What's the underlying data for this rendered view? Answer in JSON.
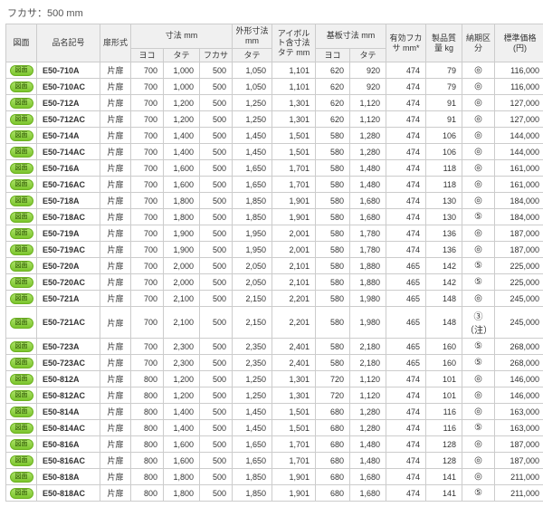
{
  "title": "フカサ：500 mm",
  "headers": {
    "zumen": "図面",
    "part": "品名記号",
    "door": "扉形式",
    "dims": "寸法 mm",
    "dims_sub": {
      "yoko": "ヨコ",
      "tate": "タテ",
      "fukasa": "フカサ"
    },
    "gaikei": "外形寸法 mm",
    "gaikei_sub": "タテ",
    "eyebolt": "アイボルト含寸法 タテ mm",
    "base": "基板寸法 mm",
    "base_sub": {
      "yoko": "ヨコ",
      "tate": "タテ"
    },
    "effective": "有効フカサ mm*",
    "mass": "製品質量 kg",
    "delivery": "納期区分",
    "price": "標準価格(円)"
  },
  "badge_label": "図面",
  "door_label": "片扉",
  "rows": [
    {
      "p": "E50-710A",
      "yoko": 700,
      "tate": 1000,
      "fuk": 500,
      "g": 1050,
      "eb": 1101,
      "by": 620,
      "bt": 920,
      "eff": 474,
      "kg": 79,
      "dlv": "◎",
      "pr": "116,000"
    },
    {
      "p": "E50-710AC",
      "yoko": 700,
      "tate": 1000,
      "fuk": 500,
      "g": 1050,
      "eb": 1101,
      "by": 620,
      "bt": 920,
      "eff": 474,
      "kg": 79,
      "dlv": "◎",
      "pr": "116,000"
    },
    {
      "p": "E50-712A",
      "yoko": 700,
      "tate": 1200,
      "fuk": 500,
      "g": 1250,
      "eb": 1301,
      "by": 620,
      "bt": 1120,
      "eff": 474,
      "kg": 91,
      "dlv": "◎",
      "pr": "127,000"
    },
    {
      "p": "E50-712AC",
      "yoko": 700,
      "tate": 1200,
      "fuk": 500,
      "g": 1250,
      "eb": 1301,
      "by": 620,
      "bt": 1120,
      "eff": 474,
      "kg": 91,
      "dlv": "◎",
      "pr": "127,000"
    },
    {
      "p": "E50-714A",
      "yoko": 700,
      "tate": 1400,
      "fuk": 500,
      "g": 1450,
      "eb": 1501,
      "by": 580,
      "bt": 1280,
      "eff": 474,
      "kg": 106,
      "dlv": "◎",
      "pr": "144,000"
    },
    {
      "p": "E50-714AC",
      "yoko": 700,
      "tate": 1400,
      "fuk": 500,
      "g": 1450,
      "eb": 1501,
      "by": 580,
      "bt": 1280,
      "eff": 474,
      "kg": 106,
      "dlv": "◎",
      "pr": "144,000"
    },
    {
      "p": "E50-716A",
      "yoko": 700,
      "tate": 1600,
      "fuk": 500,
      "g": 1650,
      "eb": 1701,
      "by": 580,
      "bt": 1480,
      "eff": 474,
      "kg": 118,
      "dlv": "◎",
      "pr": "161,000"
    },
    {
      "p": "E50-716AC",
      "yoko": 700,
      "tate": 1600,
      "fuk": 500,
      "g": 1650,
      "eb": 1701,
      "by": 580,
      "bt": 1480,
      "eff": 474,
      "kg": 118,
      "dlv": "◎",
      "pr": "161,000"
    },
    {
      "p": "E50-718A",
      "yoko": 700,
      "tate": 1800,
      "fuk": 500,
      "g": 1850,
      "eb": 1901,
      "by": 580,
      "bt": 1680,
      "eff": 474,
      "kg": 130,
      "dlv": "◎",
      "pr": "184,000"
    },
    {
      "p": "E50-718AC",
      "yoko": 700,
      "tate": 1800,
      "fuk": 500,
      "g": 1850,
      "eb": 1901,
      "by": 580,
      "bt": 1680,
      "eff": 474,
      "kg": 130,
      "dlv": "⑤",
      "pr": "184,000"
    },
    {
      "p": "E50-719A",
      "yoko": 700,
      "tate": 1900,
      "fuk": 500,
      "g": 1950,
      "eb": 2001,
      "by": 580,
      "bt": 1780,
      "eff": 474,
      "kg": 136,
      "dlv": "◎",
      "pr": "187,000"
    },
    {
      "p": "E50-719AC",
      "yoko": 700,
      "tate": 1900,
      "fuk": 500,
      "g": 1950,
      "eb": 2001,
      "by": 580,
      "bt": 1780,
      "eff": 474,
      "kg": 136,
      "dlv": "◎",
      "pr": "187,000"
    },
    {
      "p": "E50-720A",
      "yoko": 700,
      "tate": 2000,
      "fuk": 500,
      "g": 2050,
      "eb": 2101,
      "by": 580,
      "bt": 1880,
      "eff": 465,
      "kg": 142,
      "dlv": "⑤",
      "pr": "225,000"
    },
    {
      "p": "E50-720AC",
      "yoko": 700,
      "tate": 2000,
      "fuk": 500,
      "g": 2050,
      "eb": 2101,
      "by": 580,
      "bt": 1880,
      "eff": 465,
      "kg": 142,
      "dlv": "⑤",
      "pr": "225,000"
    },
    {
      "p": "E50-721A",
      "yoko": 700,
      "tate": 2100,
      "fuk": 500,
      "g": 2150,
      "eb": 2201,
      "by": 580,
      "bt": 1980,
      "eff": 465,
      "kg": 148,
      "dlv": "◎",
      "pr": "245,000"
    },
    {
      "p": "E50-721AC",
      "yoko": 700,
      "tate": 2100,
      "fuk": 500,
      "g": 2150,
      "eb": 2201,
      "by": 580,
      "bt": 1980,
      "eff": 465,
      "kg": 148,
      "dlv": "③（注）",
      "pr": "245,000"
    },
    {
      "p": "E50-723A",
      "yoko": 700,
      "tate": 2300,
      "fuk": 500,
      "g": 2350,
      "eb": 2401,
      "by": 580,
      "bt": 2180,
      "eff": 465,
      "kg": 160,
      "dlv": "⑤",
      "pr": "268,000"
    },
    {
      "p": "E50-723AC",
      "yoko": 700,
      "tate": 2300,
      "fuk": 500,
      "g": 2350,
      "eb": 2401,
      "by": 580,
      "bt": 2180,
      "eff": 465,
      "kg": 160,
      "dlv": "⑤",
      "pr": "268,000"
    },
    {
      "p": "E50-812A",
      "yoko": 800,
      "tate": 1200,
      "fuk": 500,
      "g": 1250,
      "eb": 1301,
      "by": 720,
      "bt": 1120,
      "eff": 474,
      "kg": 101,
      "dlv": "◎",
      "pr": "146,000"
    },
    {
      "p": "E50-812AC",
      "yoko": 800,
      "tate": 1200,
      "fuk": 500,
      "g": 1250,
      "eb": 1301,
      "by": 720,
      "bt": 1120,
      "eff": 474,
      "kg": 101,
      "dlv": "◎",
      "pr": "146,000"
    },
    {
      "p": "E50-814A",
      "yoko": 800,
      "tate": 1400,
      "fuk": 500,
      "g": 1450,
      "eb": 1501,
      "by": 680,
      "bt": 1280,
      "eff": 474,
      "kg": 116,
      "dlv": "◎",
      "pr": "163,000"
    },
    {
      "p": "E50-814AC",
      "yoko": 800,
      "tate": 1400,
      "fuk": 500,
      "g": 1450,
      "eb": 1501,
      "by": 680,
      "bt": 1280,
      "eff": 474,
      "kg": 116,
      "dlv": "⑤",
      "pr": "163,000"
    },
    {
      "p": "E50-816A",
      "yoko": 800,
      "tate": 1600,
      "fuk": 500,
      "g": 1650,
      "eb": 1701,
      "by": 680,
      "bt": 1480,
      "eff": 474,
      "kg": 128,
      "dlv": "◎",
      "pr": "187,000"
    },
    {
      "p": "E50-816AC",
      "yoko": 800,
      "tate": 1600,
      "fuk": 500,
      "g": 1650,
      "eb": 1701,
      "by": 680,
      "bt": 1480,
      "eff": 474,
      "kg": 128,
      "dlv": "◎",
      "pr": "187,000"
    },
    {
      "p": "E50-818A",
      "yoko": 800,
      "tate": 1800,
      "fuk": 500,
      "g": 1850,
      "eb": 1901,
      "by": 680,
      "bt": 1680,
      "eff": 474,
      "kg": 141,
      "dlv": "◎",
      "pr": "211,000"
    },
    {
      "p": "E50-818AC",
      "yoko": 800,
      "tate": 1800,
      "fuk": 500,
      "g": 1850,
      "eb": 1901,
      "by": 680,
      "bt": 1680,
      "eff": 474,
      "kg": 141,
      "dlv": "⑤",
      "pr": "211,000"
    }
  ]
}
